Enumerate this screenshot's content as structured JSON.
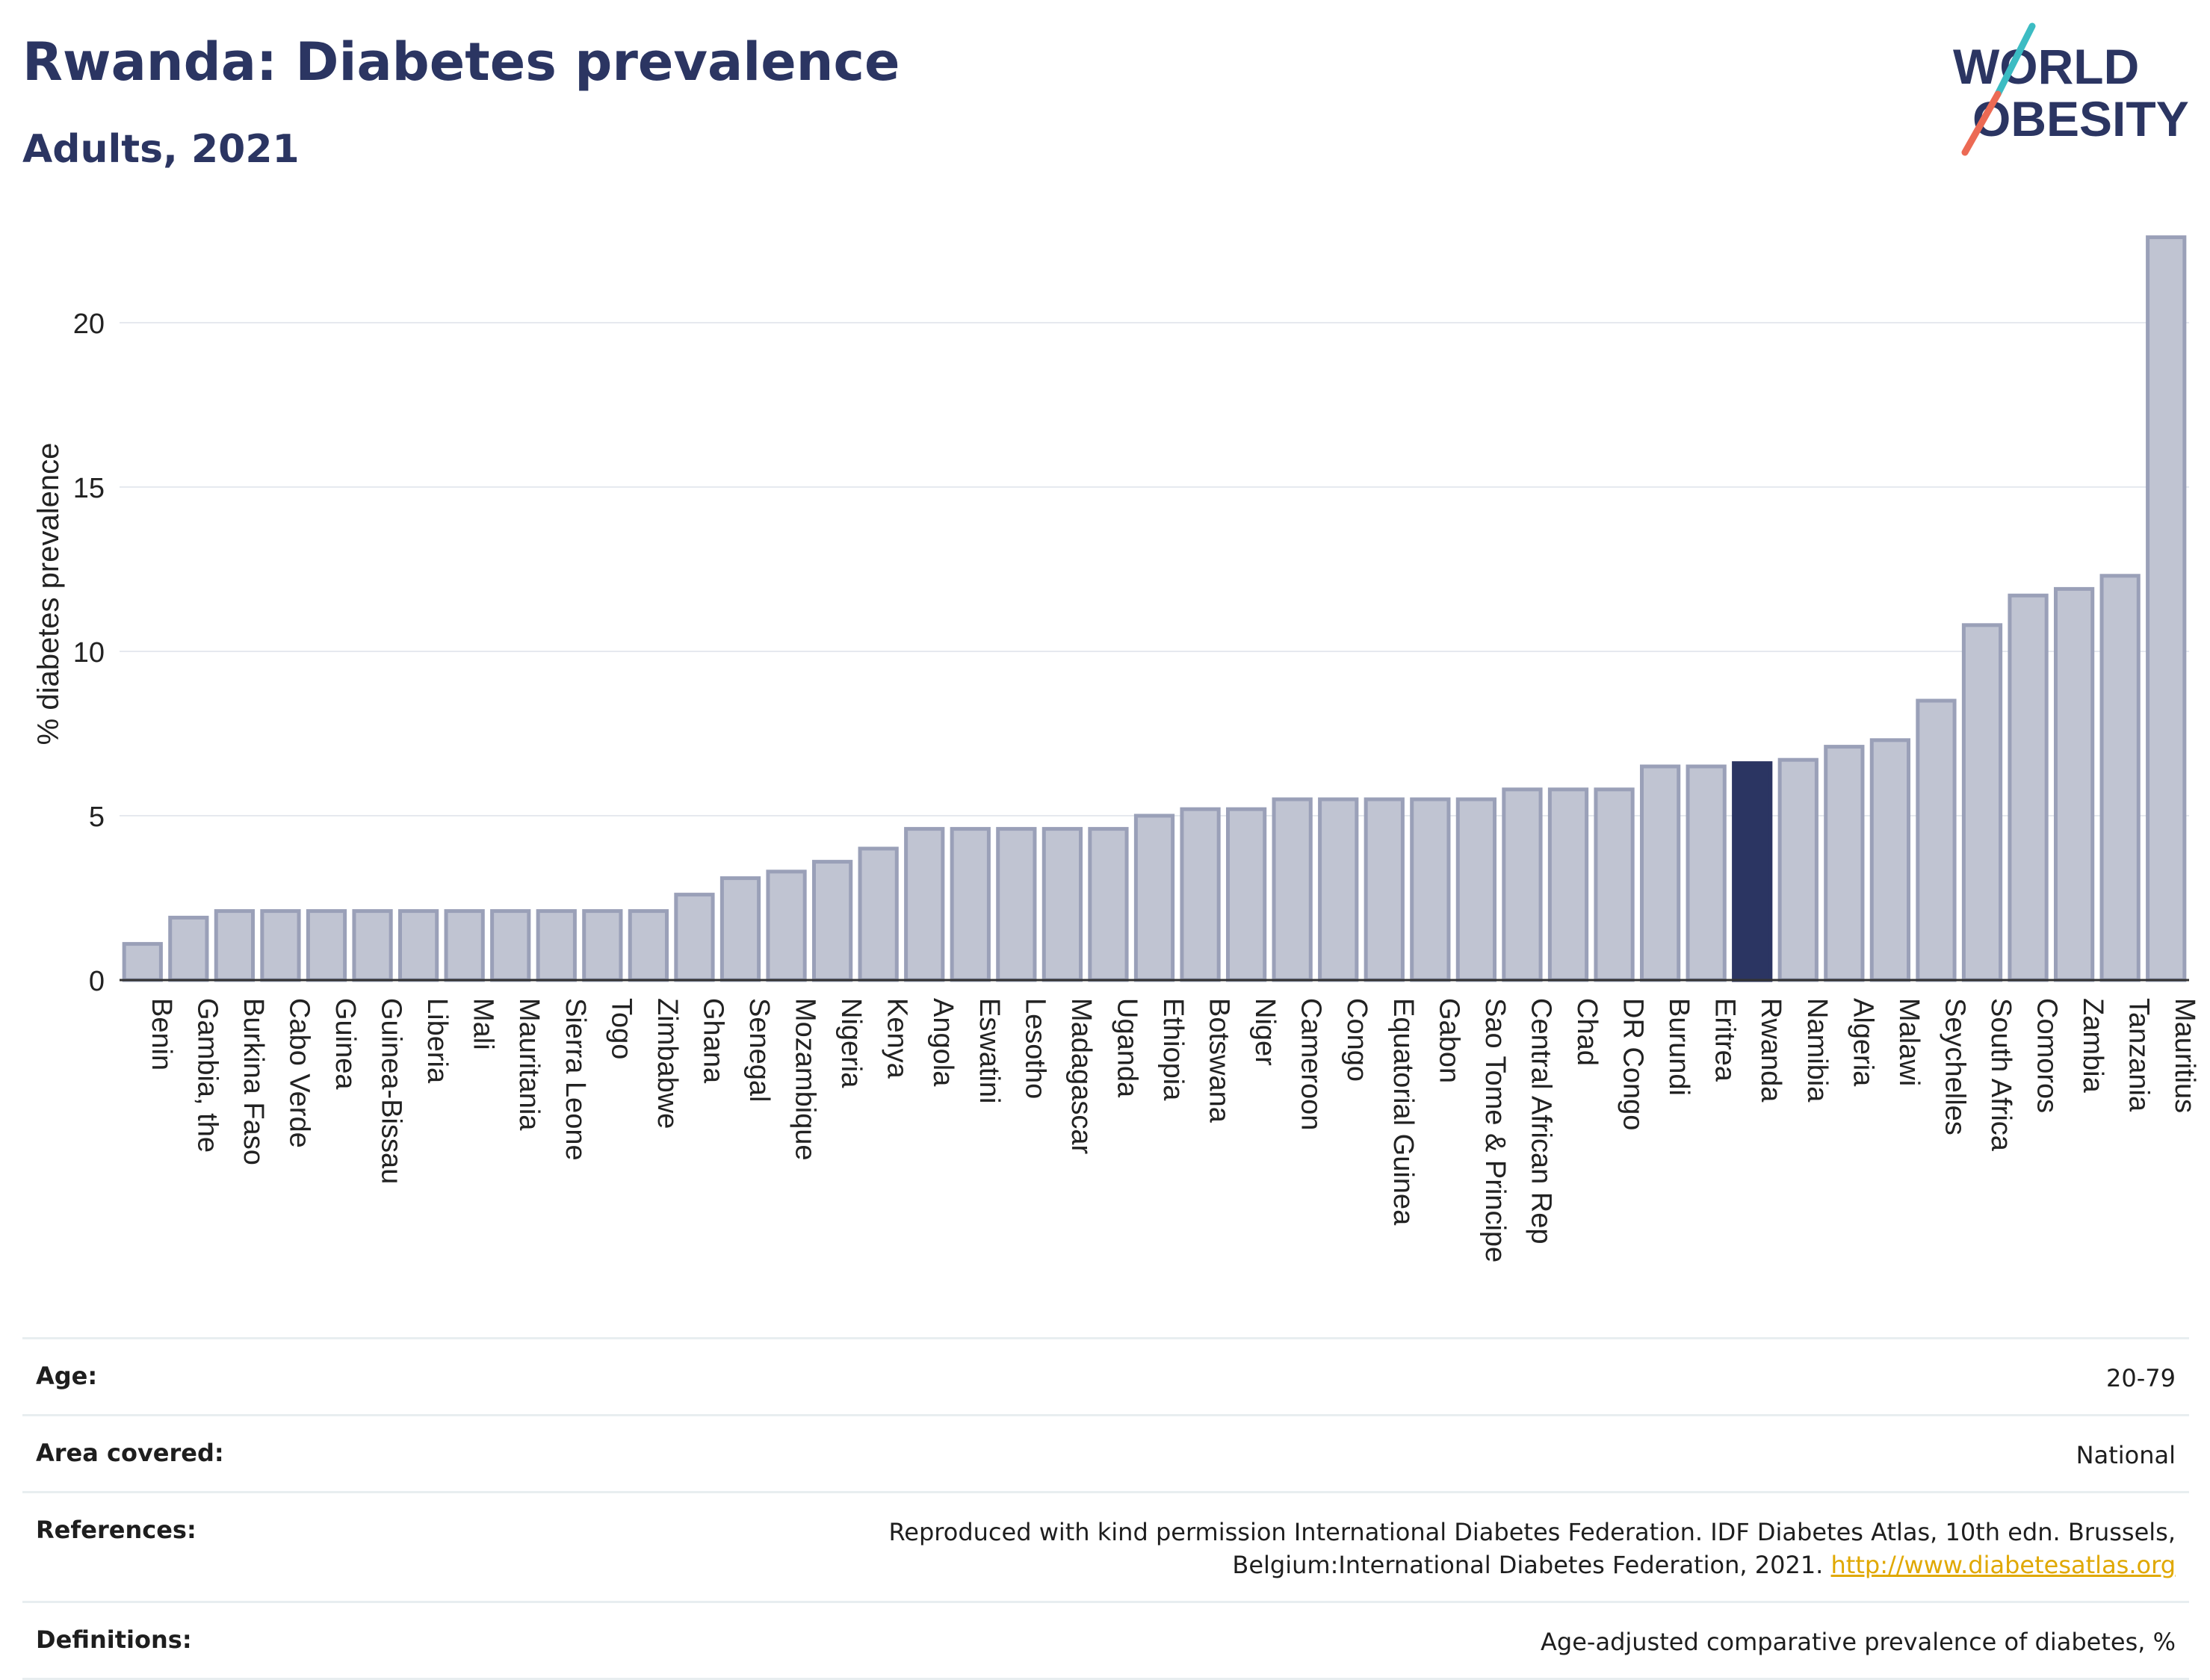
{
  "header": {
    "title": "Rwanda: Diabetes prevalence",
    "subtitle": "Adults, 2021"
  },
  "logo": {
    "line1": "WORLD",
    "line2": "OBESITY"
  },
  "colors": {
    "bar": "#c0c4d2",
    "bar_stroke": "#9aa0b8",
    "highlight": "#2b3562",
    "grid": "#e6e9ef"
  },
  "chart_data": {
    "type": "bar",
    "title": "Rwanda: Diabetes prevalence",
    "subtitle": "Adults, 2021",
    "ylabel": "% diabetes prevalence",
    "xlabel": "",
    "ylim": [
      0,
      23
    ],
    "yticks": [
      0,
      5,
      10,
      15,
      20
    ],
    "grid": true,
    "highlight": "Rwanda",
    "categories": [
      "Benin",
      "Gambia, the",
      "Burkina Faso",
      "Cabo Verde",
      "Guinea",
      "Guinea-Bissau",
      "Liberia",
      "Mali",
      "Mauritania",
      "Sierra Leone",
      "Togo",
      "Zimbabwe",
      "Ghana",
      "Senegal",
      "Mozambique",
      "Nigeria",
      "Kenya",
      "Angola",
      "Eswatini",
      "Lesotho",
      "Madagascar",
      "Uganda",
      "Ethiopia",
      "Botswana",
      "Niger",
      "Cameroon",
      "Congo",
      "Equatorial Guinea",
      "Gabon",
      "Sao Tome & Principe",
      "Central African Rep",
      "Chad",
      "DR Congo",
      "Burundi",
      "Eritrea",
      "Rwanda",
      "Namibia",
      "Algeria",
      "Malawi",
      "Seychelles",
      "South Africa",
      "Comoros",
      "Zambia",
      "Tanzania",
      "Mauritius"
    ],
    "values": [
      1.1,
      1.9,
      2.1,
      2.1,
      2.1,
      2.1,
      2.1,
      2.1,
      2.1,
      2.1,
      2.1,
      2.1,
      2.6,
      3.1,
      3.3,
      3.6,
      4.0,
      4.6,
      4.6,
      4.6,
      4.6,
      4.6,
      5.0,
      5.2,
      5.2,
      5.5,
      5.5,
      5.5,
      5.5,
      5.5,
      5.8,
      5.8,
      5.8,
      6.5,
      6.5,
      6.6,
      6.7,
      7.1,
      7.3,
      8.5,
      10.8,
      11.7,
      11.9,
      12.3,
      22.6
    ]
  },
  "info": [
    {
      "label": "Age:",
      "value": "20-79"
    },
    {
      "label": "Area covered:",
      "value": "National"
    },
    {
      "label": "References:",
      "value": "Reproduced with kind permission International Diabetes Federation.  IDF Diabetes Atlas, 10th edn. Brussels, Belgium:International Diabetes Federation, 2021.",
      "link": "http://www.diabetesatlas.org"
    },
    {
      "label": "Definitions:",
      "value": "Age-adjusted comparative prevalence of diabetes, %"
    }
  ]
}
